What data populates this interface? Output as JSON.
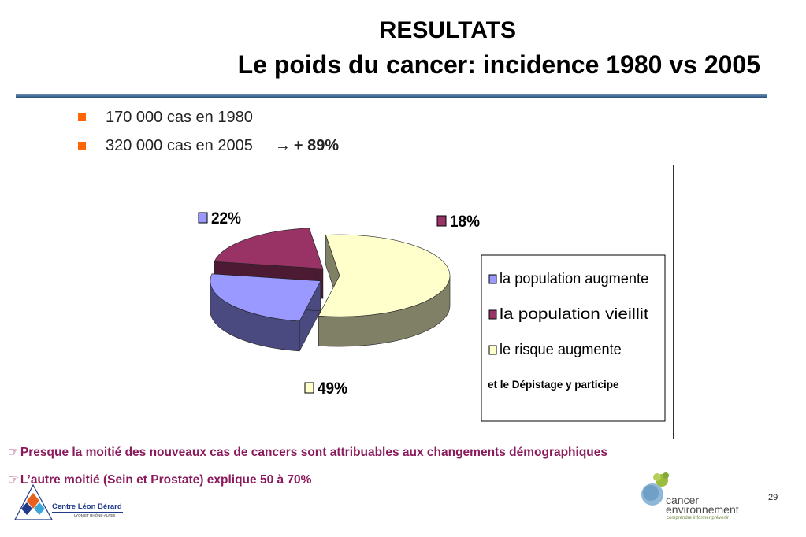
{
  "slide": {
    "title_line1": "RESULTATS",
    "title_line2": "Le poids du cancer: incidence 1980 vs 2005",
    "page_number": "29"
  },
  "bullets": [
    {
      "text": "170 000 cas en 1980"
    },
    {
      "text": "320 000 cas en 2005",
      "arrow": "→",
      "emphasis": "+ 89%"
    }
  ],
  "notes": [
    {
      "icon": "pointing-hand-icon",
      "text": "Presque la moitié des nouveaux cas de cancers sont attribuables aux changements démographiques"
    },
    {
      "icon": "pointing-hand-icon",
      "text": "L’autre moitié (Sein et Prostate) explique 50 à 70%"
    }
  ],
  "chart_data": {
    "type": "pie",
    "style": "3d-exploded",
    "slices": [
      {
        "label": "la population augmente",
        "value": 22,
        "display": "22%",
        "color": "#9999ff",
        "side_color": "#4a4a80"
      },
      {
        "label": "la population vieillit",
        "value": 18,
        "display": "18%",
        "color": "#993366",
        "side_color": "#4d1a33"
      },
      {
        "label": "le risque augmente",
        "value": 49,
        "display": "49%",
        "color": "#ffffcc",
        "side_color": "#808066"
      }
    ],
    "legend": {
      "position": "right",
      "entries": [
        "la population augmente",
        "la population vieillit",
        "le risque augmente"
      ],
      "extra_text": "et le Dépistage y participe"
    }
  },
  "logos": {
    "left": {
      "name": "Centre Léon Bérard",
      "subtitle": "LYON ET RHÔNE-ALPES"
    },
    "right": {
      "line1": "cancer",
      "line2": "environnement",
      "tagline": "comprendre informer prévenir"
    }
  }
}
